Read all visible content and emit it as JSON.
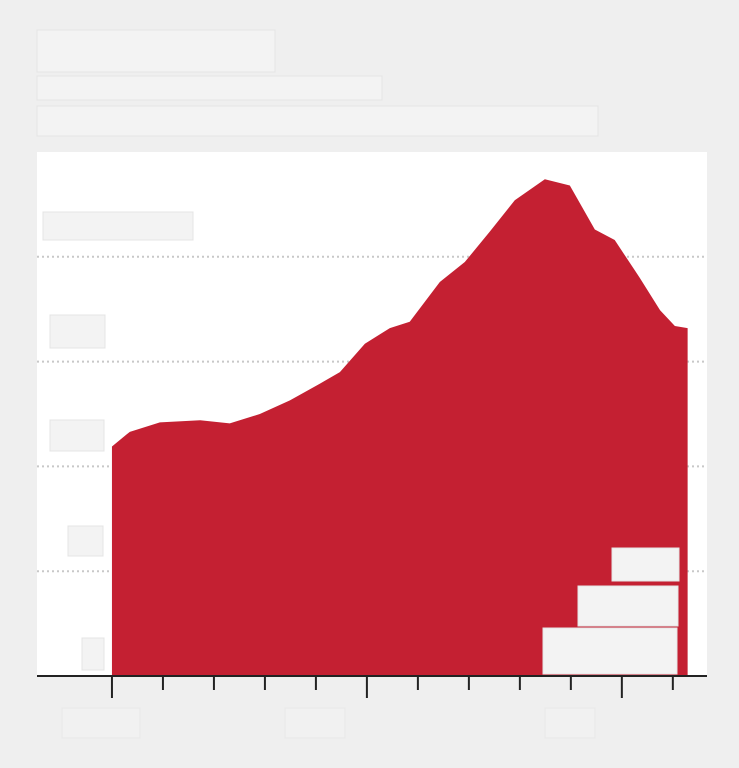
{
  "chart_data": {
    "type": "area",
    "x": [
      0,
      0.35,
      0.94,
      1.73,
      2.31,
      2.9,
      3.49,
      4.08,
      4.47,
      4.96,
      5.45,
      5.84,
      6.43,
      6.92,
      7.41,
      7.9,
      8.49,
      8.98,
      9.47,
      9.86,
      10.35,
      10.75,
      11.04,
      11.29
    ],
    "values": [
      2.19,
      2.33,
      2.42,
      2.44,
      2.41,
      2.5,
      2.63,
      2.79,
      2.9,
      3.17,
      3.32,
      3.38,
      3.76,
      3.95,
      4.24,
      4.54,
      4.74,
      4.68,
      4.26,
      4.16,
      3.8,
      3.49,
      3.34,
      3.32
    ],
    "color": "#c42032",
    "xlim": [
      -1.47,
      11.67
    ],
    "xticks": [
      0,
      1,
      2,
      3,
      4,
      5,
      6,
      7,
      8,
      9,
      10,
      11
    ],
    "ylim": [
      0,
      5
    ],
    "yticks": [
      0,
      1,
      2,
      3,
      4
    ],
    "grid": true
  }
}
